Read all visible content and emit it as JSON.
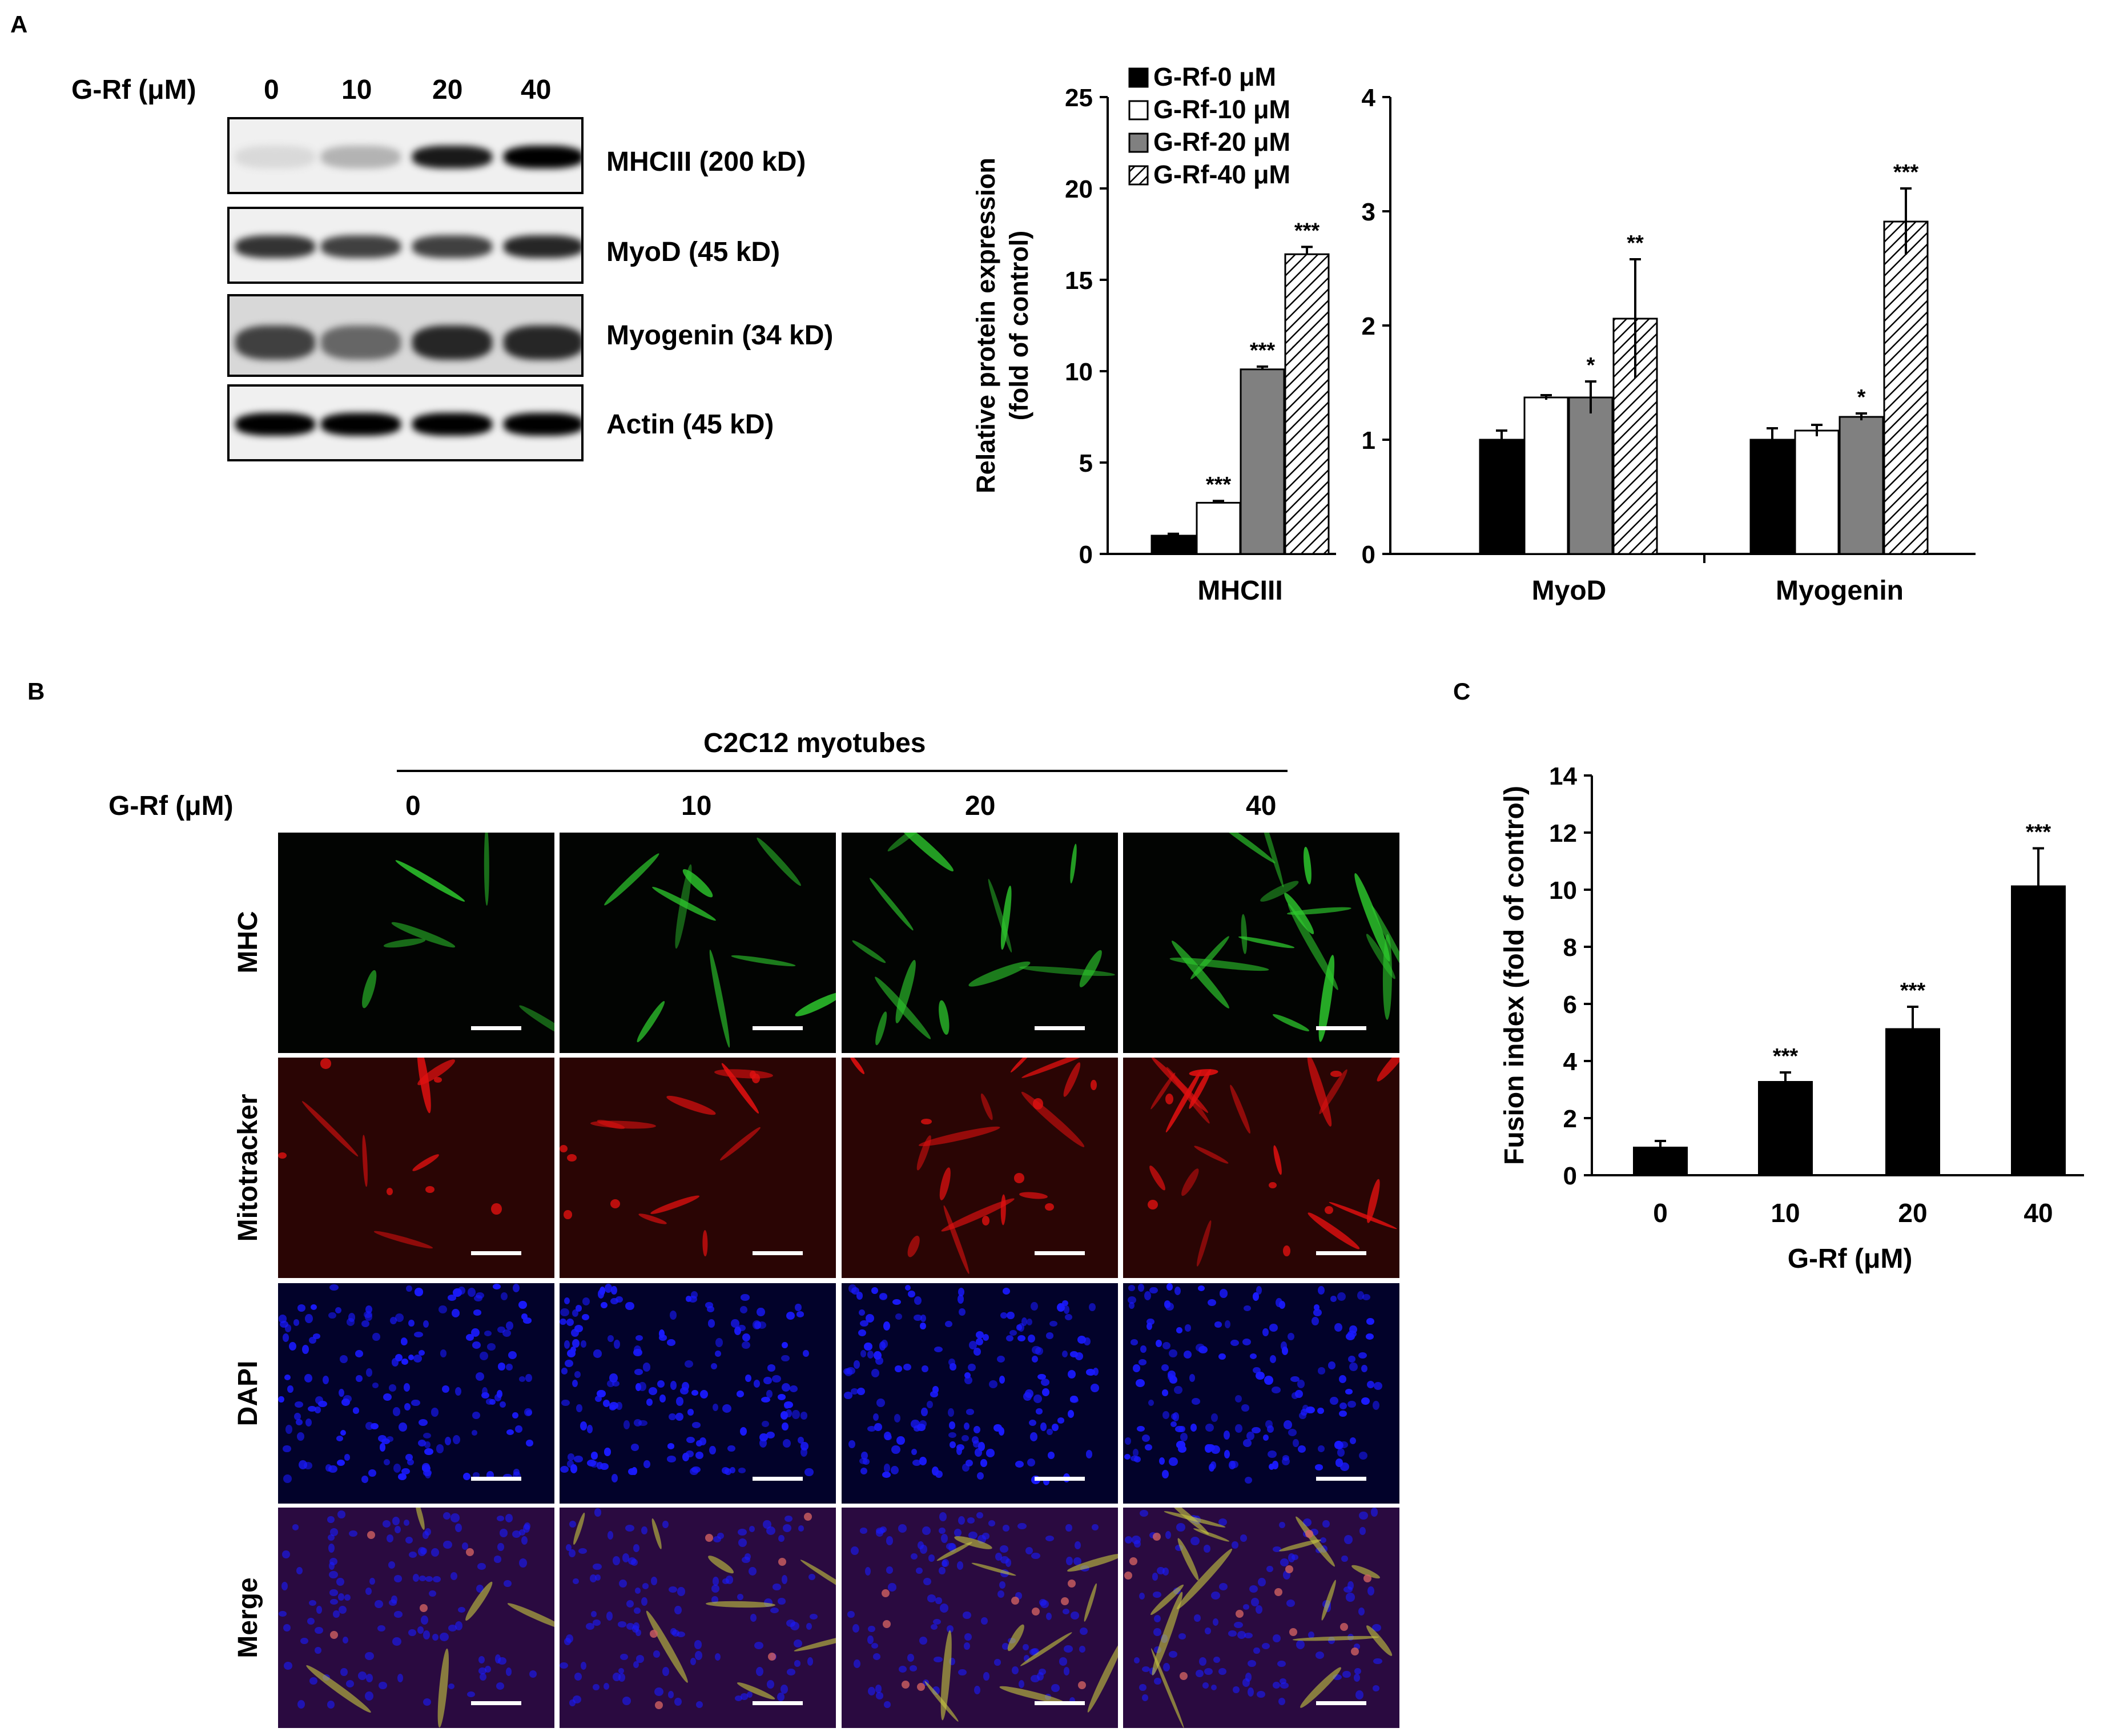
{
  "panels": {
    "a": "A",
    "b": "B",
    "c": "C"
  },
  "blot": {
    "treatment_label": "G-Rf (μM)",
    "doses": [
      "0",
      "10",
      "20",
      "40"
    ],
    "bands": [
      {
        "label": "MHCIII (200 kD)",
        "intensity": [
          0.15,
          0.3,
          0.9,
          1.0
        ]
      },
      {
        "label": "MyoD (45 kD)",
        "intensity": [
          0.8,
          0.75,
          0.75,
          0.85
        ]
      },
      {
        "label": "Myogenin (34 kD)",
        "intensity": [
          0.75,
          0.6,
          0.85,
          0.85
        ]
      },
      {
        "label": "Actin (45 kD)",
        "intensity": [
          1.0,
          1.0,
          1.0,
          1.0
        ]
      }
    ]
  },
  "colors": {
    "black_bar": "#000000",
    "gray_bar": "#808080",
    "white_bar": "#ffffff",
    "mhc": "#2dc82d",
    "mitotracker": "#e01010",
    "dapi": "#1a1aff"
  },
  "chart_data": [
    {
      "type": "bar",
      "panel": "A (left)",
      "ylabel": "Relative protein expression (fold of control)",
      "ylim": [
        0,
        25
      ],
      "yticks": [
        "0",
        "5",
        "10",
        "15",
        "20",
        "25"
      ],
      "categories": [
        "MHCIII"
      ],
      "series": [
        {
          "name": "G-Rf-0 μM",
          "values": [
            1.0
          ],
          "errors": [
            0.1
          ],
          "sig": [
            ""
          ]
        },
        {
          "name": "G-Rf-10 μM",
          "values": [
            2.8
          ],
          "errors": [
            0.1
          ],
          "sig": [
            "***"
          ]
        },
        {
          "name": "G-Rf-20 μM",
          "values": [
            10.1
          ],
          "errors": [
            0.15
          ],
          "sig": [
            "***"
          ]
        },
        {
          "name": "G-Rf-40 μM",
          "values": [
            16.4
          ],
          "errors": [
            0.4
          ],
          "sig": [
            "***"
          ]
        }
      ]
    },
    {
      "type": "bar",
      "panel": "A (right)",
      "ylim": [
        0,
        4
      ],
      "yticks": [
        "0",
        "1",
        "2",
        "3",
        "4"
      ],
      "categories": [
        "MyoD",
        "Myogenin"
      ],
      "series": [
        {
          "name": "G-Rf-0 μM",
          "values": [
            1.0,
            1.0
          ],
          "errors": [
            0.08,
            0.1
          ],
          "sig": [
            "",
            ""
          ]
        },
        {
          "name": "G-Rf-10 μM",
          "values": [
            1.37,
            1.08
          ],
          "errors": [
            0.02,
            0.05
          ],
          "sig": [
            "",
            ""
          ]
        },
        {
          "name": "G-Rf-20 μM",
          "values": [
            1.37,
            1.2
          ],
          "errors": [
            0.14,
            0.03
          ],
          "sig": [
            "*",
            "*"
          ]
        },
        {
          "name": "G-Rf-40 μM",
          "values": [
            2.06,
            2.91
          ],
          "errors": [
            0.52,
            0.29
          ],
          "sig": [
            "**",
            "***"
          ]
        }
      ]
    },
    {
      "type": "bar",
      "panel": "C",
      "xlabel": "G-Rf (μM)",
      "ylabel": "Fusion index (fold of control)",
      "ylim": [
        0,
        14
      ],
      "yticks": [
        "0",
        "2",
        "4",
        "6",
        "8",
        "10",
        "12",
        "14"
      ],
      "categories": [
        "0",
        "10",
        "20",
        "40"
      ],
      "values": [
        1.0,
        3.3,
        5.15,
        10.15
      ],
      "errors": [
        0.2,
        0.3,
        0.75,
        1.3
      ],
      "sig": [
        "",
        "***",
        "***",
        "***"
      ]
    }
  ],
  "legend": [
    "G-Rf-0 μM",
    "G-Rf-10 μM",
    "G-Rf-20 μM",
    "G-Rf-40 μM"
  ],
  "microscopy": {
    "header": "C2C12 myotubes",
    "treatment_label": "G-Rf (μM)",
    "doses": [
      "0",
      "10",
      "20",
      "40"
    ],
    "rows": [
      "MHC",
      "Mitotracker",
      "DAPI",
      "Merge"
    ]
  }
}
